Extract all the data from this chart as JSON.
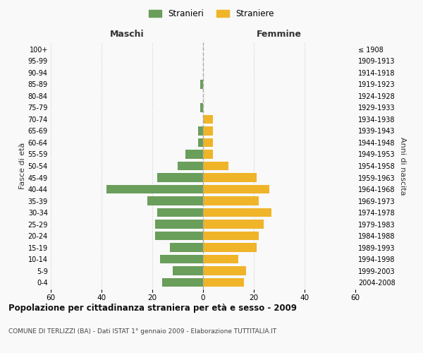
{
  "age_groups": [
    "100+",
    "95-99",
    "90-94",
    "85-89",
    "80-84",
    "75-79",
    "70-74",
    "65-69",
    "60-64",
    "55-59",
    "50-54",
    "45-49",
    "40-44",
    "35-39",
    "30-34",
    "25-29",
    "20-24",
    "15-19",
    "10-14",
    "5-9",
    "0-4"
  ],
  "birth_years": [
    "≤ 1908",
    "1909-1913",
    "1914-1918",
    "1919-1923",
    "1924-1928",
    "1929-1933",
    "1934-1938",
    "1939-1943",
    "1944-1948",
    "1949-1953",
    "1954-1958",
    "1959-1963",
    "1964-1968",
    "1969-1973",
    "1974-1978",
    "1979-1983",
    "1984-1988",
    "1989-1993",
    "1994-1998",
    "1999-2003",
    "2004-2008"
  ],
  "maschi": [
    0,
    0,
    0,
    1,
    0,
    1,
    0,
    2,
    2,
    7,
    10,
    18,
    38,
    22,
    18,
    19,
    19,
    13,
    17,
    12,
    16
  ],
  "femmine": [
    0,
    0,
    0,
    0,
    0,
    0,
    4,
    4,
    4,
    4,
    10,
    21,
    26,
    22,
    27,
    24,
    22,
    21,
    14,
    17,
    16
  ],
  "maschi_color": "#6a9e5b",
  "femmine_color": "#f0b429",
  "background_color": "#f9f9f9",
  "grid_color": "#cccccc",
  "title": "Popolazione per cittadinanza straniera per età e sesso - 2009",
  "subtitle": "COMUNE DI TERLIZZI (BA) - Dati ISTAT 1° gennaio 2009 - Elaborazione TUTTITALIA.IT",
  "xlabel_left": "Maschi",
  "xlabel_right": "Femmine",
  "ylabel_left": "Fasce di età",
  "ylabel_right": "Anni di nascita",
  "legend_maschi": "Stranieri",
  "legend_femmine": "Straniere",
  "xlim": 60
}
